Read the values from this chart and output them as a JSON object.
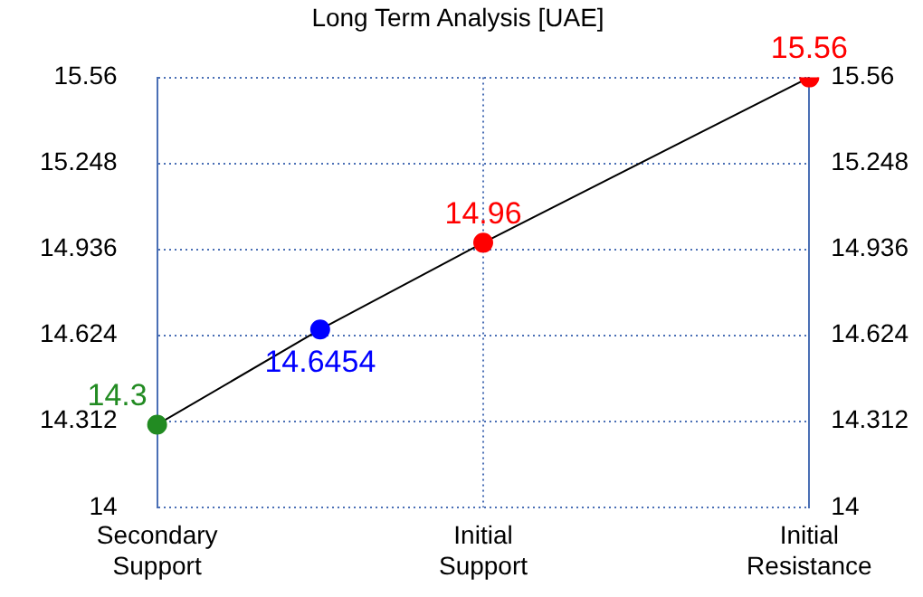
{
  "chart_data": {
    "type": "line",
    "title": "Long Term Analysis [UAE]",
    "categories": [
      "Secondary Support",
      null,
      "Initial Support",
      null,
      "Initial Resistance"
    ],
    "series": [
      {
        "color": "#000000",
        "colors": [
          "#228b22",
          "#0000ff",
          "#ff0000",
          null,
          "#ff0000"
        ],
        "values": [
          14.3,
          14.6454,
          14.96,
          null,
          15.56
        ]
      }
    ],
    "data_labels": true,
    "marker": "circle",
    "grid": true,
    "ylim": [
      14,
      15.56
    ],
    "yticks": [
      14,
      14.312,
      14.624,
      14.936,
      15.248,
      15.56
    ],
    "y2lim": [
      14,
      15.56
    ],
    "y2ticks": [
      14,
      14.312,
      14.624,
      14.936,
      15.248,
      15.56
    ]
  }
}
